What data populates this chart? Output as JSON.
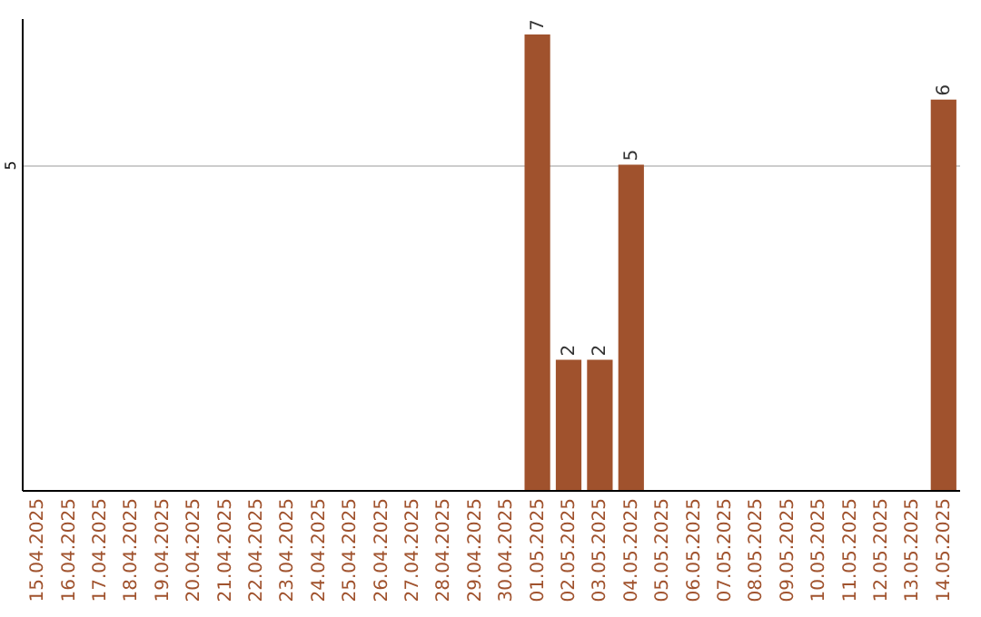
{
  "chart_data": {
    "type": "bar",
    "categories": [
      "15.04.2025",
      "16.04.2025",
      "17.04.2025",
      "18.04.2025",
      "19.04.2025",
      "20.04.2025",
      "21.04.2025",
      "22.04.2025",
      "23.04.2025",
      "24.04.2025",
      "25.04.2025",
      "26.04.2025",
      "27.04.2025",
      "28.04.2025",
      "29.04.2025",
      "30.04.2025",
      "01.05.2025",
      "02.05.2025",
      "03.05.2025",
      "04.05.2025",
      "05.05.2025",
      "06.05.2025",
      "07.05.2025",
      "08.05.2025",
      "09.05.2025",
      "10.05.2025",
      "11.05.2025",
      "12.05.2025",
      "13.05.2025",
      "14.05.2025"
    ],
    "values": [
      null,
      null,
      null,
      null,
      null,
      null,
      null,
      null,
      null,
      null,
      null,
      null,
      null,
      null,
      null,
      null,
      7,
      2,
      2,
      5,
      null,
      null,
      null,
      null,
      null,
      null,
      null,
      null,
      null,
      6
    ],
    "color": "#a0522d",
    "ylim": [
      0,
      7.25
    ],
    "yticks": [
      5
    ],
    "grid": "y",
    "data_labels": true
  }
}
